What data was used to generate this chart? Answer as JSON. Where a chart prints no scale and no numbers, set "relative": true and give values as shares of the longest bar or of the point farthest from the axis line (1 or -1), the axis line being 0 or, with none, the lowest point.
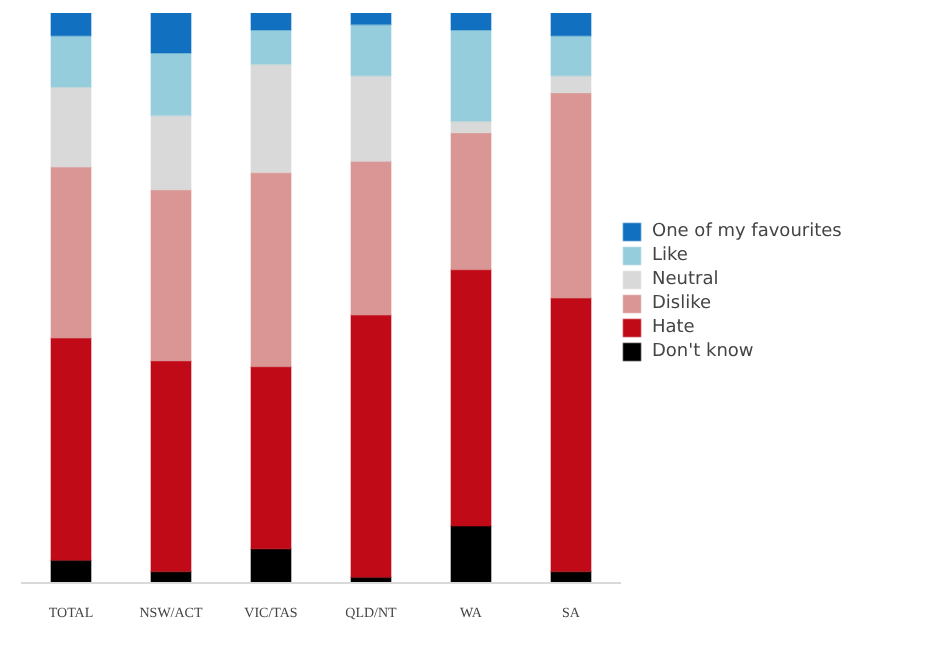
{
  "chart_data": {
    "type": "bar",
    "stacked": true,
    "relative": true,
    "legend": "right",
    "categories": [
      "TOTAL",
      "NSW/ACT",
      "VIC/TAS",
      "QLD/NT",
      "WA",
      "SA"
    ],
    "series": [
      {
        "name": "Don't know",
        "color": "#000000",
        "values": [
          0.04,
          0.02,
          0.06,
          0.01,
          0.1,
          0.02
        ]
      },
      {
        "name": "Hate",
        "color": "#c00a17",
        "values": [
          0.39,
          0.37,
          0.32,
          0.46,
          0.45,
          0.48
        ]
      },
      {
        "name": "Dislike",
        "color": "#d99694",
        "values": [
          0.3,
          0.3,
          0.34,
          0.27,
          0.24,
          0.36
        ]
      },
      {
        "name": "Neutral",
        "color": "#d9d9d9",
        "values": [
          0.14,
          0.13,
          0.19,
          0.15,
          0.02,
          0.03
        ]
      },
      {
        "name": "Like",
        "color": "#96cddc",
        "values": [
          0.09,
          0.11,
          0.06,
          0.09,
          0.16,
          0.07
        ]
      },
      {
        "name": "One of my favourites",
        "color": "#1170c0",
        "values": [
          0.04,
          0.07,
          0.03,
          0.02,
          0.03,
          0.04
        ]
      }
    ]
  }
}
